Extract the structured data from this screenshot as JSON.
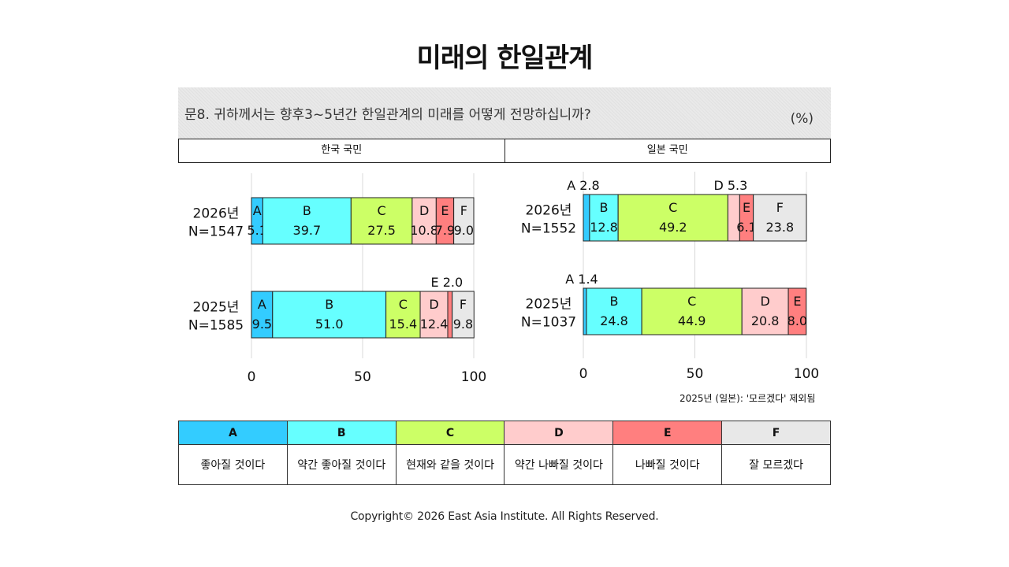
{
  "title": "미래의 한일관계",
  "question": "문8. 귀하께서는 향후3~5년간 한일관계의 미래를 어떻게 전망하십니까?",
  "unit": "(%)",
  "panels": [
    "한국 국민",
    "일본 국민"
  ],
  "footnote": "2025년 (일본): '모르겠다' 제외됨",
  "legend": {
    "codes": [
      "A",
      "B",
      "C",
      "D",
      "E",
      "F"
    ],
    "descriptions": [
      "좋아질 것이다",
      "약간 좋아질 것이다",
      "현재와 같을 것이다",
      "약간 나빠질 것이다",
      "나빠질 것이다",
      "잘 모르겠다"
    ],
    "colors": [
      "#33ccff",
      "#66ffff",
      "#ccff66",
      "#ffcccc",
      "#ff7f7f",
      "#e8e8e8"
    ]
  },
  "copyright": "Copyright© 2026 East Asia Institute. All Rights Reserved.",
  "chart_data": [
    {
      "type": "bar",
      "orientation": "horizontal",
      "stacked": true,
      "panel": "한국 국민",
      "categories": [
        {
          "year": "2026년",
          "n": "N=1547"
        },
        {
          "year": "2025년",
          "n": "N=1585"
        }
      ],
      "series": [
        {
          "name": "A",
          "values": [
            5.1,
            9.5
          ]
        },
        {
          "name": "B",
          "values": [
            39.7,
            51.0
          ]
        },
        {
          "name": "C",
          "values": [
            27.5,
            15.4
          ]
        },
        {
          "name": "D",
          "values": [
            10.8,
            12.4
          ]
        },
        {
          "name": "E",
          "values": [
            7.9,
            2.0
          ]
        },
        {
          "name": "F",
          "values": [
            9.0,
            9.8
          ]
        }
      ],
      "xlim": [
        0,
        100
      ],
      "xticks": [
        "0",
        "50",
        "100"
      ],
      "grid": true
    },
    {
      "type": "bar",
      "orientation": "horizontal",
      "stacked": true,
      "panel": "일본 국민",
      "categories": [
        {
          "year": "2026년",
          "n": "N=1552"
        },
        {
          "year": "2025년",
          "n": "N=1037"
        }
      ],
      "series": [
        {
          "name": "A",
          "values": [
            2.8,
            1.4
          ]
        },
        {
          "name": "B",
          "values": [
            12.8,
            24.8
          ]
        },
        {
          "name": "C",
          "values": [
            49.2,
            44.9
          ]
        },
        {
          "name": "D",
          "values": [
            5.3,
            20.8
          ]
        },
        {
          "name": "E",
          "values": [
            6.1,
            8.0
          ]
        },
        {
          "name": "F",
          "values": [
            23.8,
            null
          ]
        }
      ],
      "xlim": [
        0,
        100
      ],
      "xticks": [
        "0",
        "50",
        "100"
      ],
      "grid": true
    }
  ]
}
